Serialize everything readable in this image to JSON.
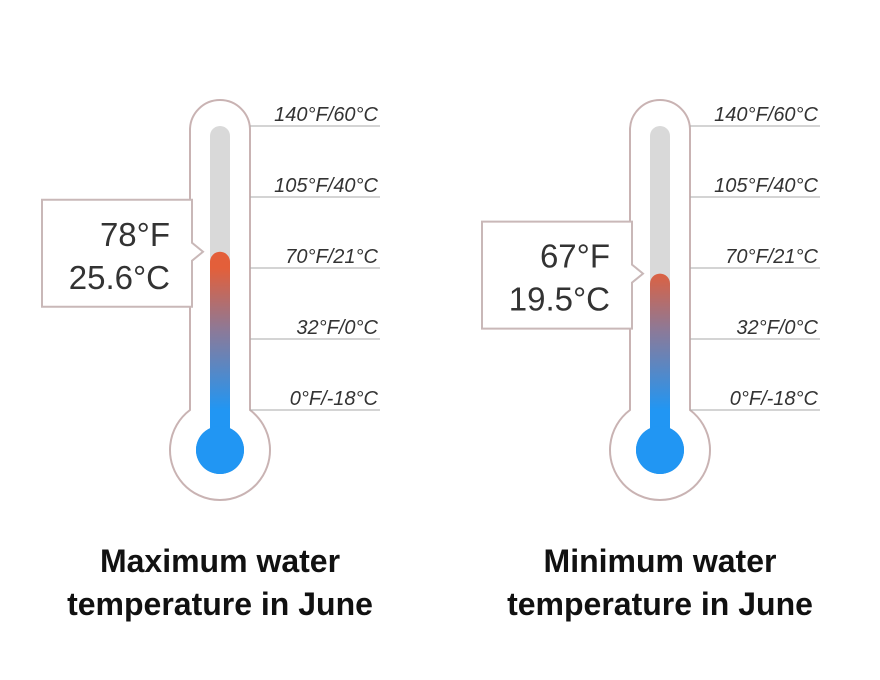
{
  "chart_data": [
    {
      "type": "thermometer",
      "title": "Maximum water temperature in June",
      "values": [
        78
      ],
      "value_labels": [
        [
          "78°F",
          "25.6°C"
        ]
      ],
      "ylim": [
        0,
        140
      ],
      "yticks": [
        {
          "value": 0,
          "label": "0°F/-18°C"
        },
        {
          "value": 32,
          "label": "32°F/0°C"
        },
        {
          "value": 70,
          "label": "70°F/21°C"
        },
        {
          "value": 105,
          "label": "105°F/40°C"
        },
        {
          "value": 140,
          "label": "140°F/60°C"
        }
      ]
    },
    {
      "type": "thermometer",
      "title": "Minimum water temperature in June",
      "values": [
        67
      ],
      "value_labels": [
        [
          "67°F",
          "19.5°C"
        ]
      ],
      "ylim": [
        0,
        140
      ],
      "yticks": [
        {
          "value": 0,
          "label": "0°F/-18°C"
        },
        {
          "value": 32,
          "label": "32°F/0°C"
        },
        {
          "value": 70,
          "label": "70°F/21°C"
        },
        {
          "value": 105,
          "label": "105°F/40°C"
        },
        {
          "value": 140,
          "label": "140°F/60°C"
        }
      ]
    }
  ]
}
